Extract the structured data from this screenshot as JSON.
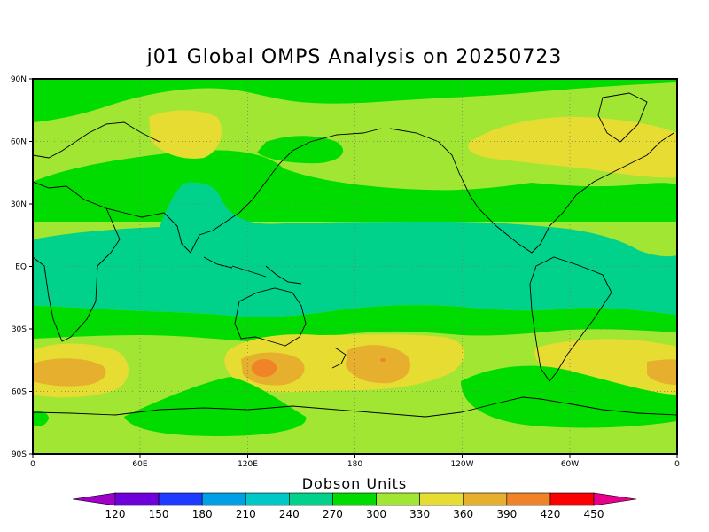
{
  "title": "j01 Global OMPS Analysis on 20250723",
  "colorbar": {
    "title": "Dobson Units",
    "levels": [
      "120",
      "150",
      "180",
      "210",
      "240",
      "270",
      "300",
      "330",
      "360",
      "390",
      "420",
      "450"
    ],
    "colors": [
      "#a000c8",
      "#6e00dc",
      "#1e3cff",
      "#00a0e6",
      "#00c8c8",
      "#00d28c",
      "#00dc00",
      "#a0e632",
      "#e6dc32",
      "#e6af2d",
      "#f08228",
      "#fa0000",
      "#e6008c"
    ]
  },
  "axes": {
    "y_ticks": [
      "90N",
      "60N",
      "30N",
      "EQ",
      "30S",
      "60S",
      "90S"
    ],
    "x_ticks": [
      "0",
      "60E",
      "120E",
      "180",
      "120W",
      "60W",
      "0"
    ]
  },
  "chart_data": {
    "type": "heatmap",
    "title": "j01 Global OMPS Analysis on 20250723",
    "units": "Dobson Units",
    "xlim": [
      0,
      360
    ],
    "ylim": [
      -90,
      90
    ],
    "contour_levels": [
      120,
      150,
      180,
      210,
      240,
      270,
      300,
      330,
      360,
      390,
      420,
      450
    ],
    "regions": [
      {
        "band": "tropics 20S-20N",
        "range_du": [
          240,
          270
        ]
      },
      {
        "band": "subtropics / midlatitudes",
        "range_du": [
          270,
          330
        ]
      },
      {
        "band": "arctic and northern high-latitude patches",
        "range_du": [
          330,
          360
        ]
      },
      {
        "band": "southern midlatitude maxima 40S-55S",
        "range_du": [
          360,
          420
        ]
      },
      {
        "band": "antarctic",
        "range_du": [
          300,
          330
        ]
      }
    ]
  }
}
